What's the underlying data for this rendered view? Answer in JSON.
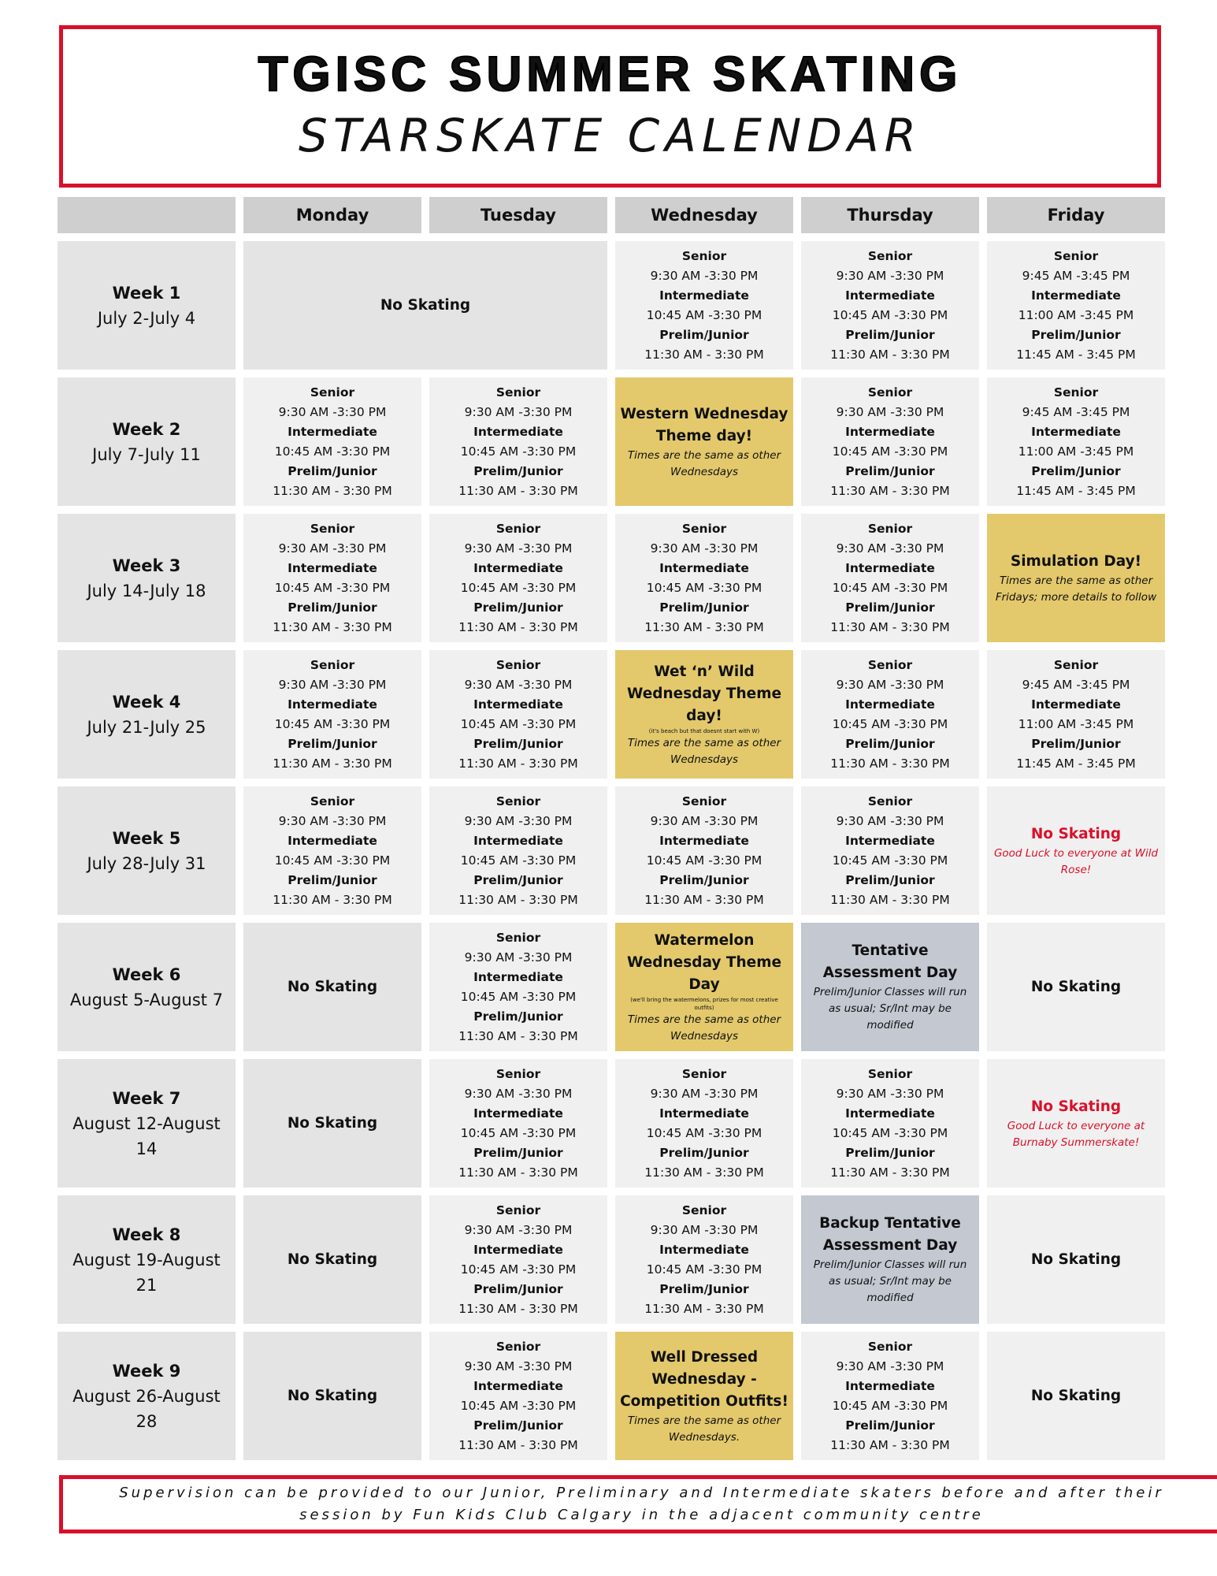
{
  "header": {
    "title": "TGISC SUMMER SKATING",
    "subtitle": "STARSKATE CALENDAR"
  },
  "table": {
    "columns": [
      "Monday",
      "Tuesday",
      "Wednesday",
      "Thursday",
      "Friday"
    ],
    "rows": [
      {
        "week": "Week 1",
        "dates": "July 2-July 4",
        "cells": [
          {
            "title": "No Skating",
            "span": 2,
            "fill": "#e4e4e4"
          },
          {
            "lines": [
              "Senior",
              "9:30 AM -3:30 PM",
              "Intermediate",
              "10:45 AM -3:30 PM",
              "Prelim/Junior",
              "11:30 AM - 3:30 PM"
            ]
          },
          {
            "lines": [
              "Senior",
              "9:30 AM -3:30 PM",
              "Intermediate",
              "10:45 AM -3:30 PM",
              "Prelim/Junior",
              "11:30 AM - 3:30 PM"
            ]
          },
          {
            "lines": [
              "Senior",
              "9:45 AM -3:45 PM",
              "Intermediate",
              "11:00 AM -3:45 PM",
              "Prelim/Junior",
              "11:45 AM - 3:45 PM"
            ]
          }
        ]
      },
      {
        "week": "Week 2",
        "dates": "July 7-July 11",
        "cells": [
          {
            "lines": [
              "Senior",
              "9:30 AM -3:30 PM",
              "Intermediate",
              "10:45 AM -3:30 PM",
              "Prelim/Junior",
              "11:30 AM - 3:30 PM"
            ]
          },
          {
            "lines": [
              "Senior",
              "9:30 AM -3:30 PM",
              "Intermediate",
              "10:45 AM -3:30 PM",
              "Prelim/Junior",
              "11:30 AM - 3:30 PM"
            ]
          },
          {
            "title": "Western Wednesday Theme day!",
            "detail": "Times are the same as other Wednesdays",
            "fill": "#e3c96c"
          },
          {
            "lines": [
              "Senior",
              "9:30 AM -3:30 PM",
              "Intermediate",
              "10:45 AM -3:30 PM",
              "Prelim/Junior",
              "11:30 AM - 3:30 PM"
            ]
          },
          {
            "lines": [
              "Senior",
              "9:45 AM -3:45 PM",
              "Intermediate",
              "11:00 AM -3:45 PM",
              "Prelim/Junior",
              "11:45 AM - 3:45 PM"
            ]
          }
        ]
      },
      {
        "week": "Week 3",
        "dates": "July 14-July 18",
        "cells": [
          {
            "lines": [
              "Senior",
              "9:30 AM -3:30 PM",
              "Intermediate",
              "10:45 AM -3:30 PM",
              "Prelim/Junior",
              "11:30 AM - 3:30 PM"
            ]
          },
          {
            "lines": [
              "Senior",
              "9:30 AM -3:30 PM",
              "Intermediate",
              "10:45 AM -3:30 PM",
              "Prelim/Junior",
              "11:30 AM - 3:30 PM"
            ]
          },
          {
            "lines": [
              "Senior",
              "9:30 AM -3:30 PM",
              "Intermediate",
              "10:45 AM -3:30 PM",
              "Prelim/Junior",
              "11:30 AM - 3:30 PM"
            ]
          },
          {
            "lines": [
              "Senior",
              "9:30 AM -3:30 PM",
              "Intermediate",
              "10:45 AM -3:30 PM",
              "Prelim/Junior",
              "11:30 AM - 3:30 PM"
            ]
          },
          {
            "title": "Simulation Day!",
            "detail": "Times are the same as other Fridays; more details to follow",
            "fill": "#e3c96c"
          }
        ]
      },
      {
        "week": "Week 4",
        "dates": "July 21-July 25",
        "cells": [
          {
            "lines": [
              "Senior",
              "9:30 AM -3:30 PM",
              "Intermediate",
              "10:45 AM -3:30 PM",
              "Prelim/Junior",
              "11:30 AM - 3:30 PM"
            ]
          },
          {
            "lines": [
              "Senior",
              "9:30 AM -3:30 PM",
              "Intermediate",
              "10:45 AM -3:30 PM",
              "Prelim/Junior",
              "11:30 AM - 3:30 PM"
            ]
          },
          {
            "title": "Wet ‘n’ Wild Wednesday Theme day!",
            "note": "(it's beach but that doesnt start with W)",
            "detail": "Times are the same as other Wednesdays",
            "fill": "#e3c96c"
          },
          {
            "lines": [
              "Senior",
              "9:30 AM -3:30 PM",
              "Intermediate",
              "10:45 AM -3:30 PM",
              "Prelim/Junior",
              "11:30 AM - 3:30 PM"
            ]
          },
          {
            "lines": [
              "Senior",
              "9:45 AM -3:45 PM",
              "Intermediate",
              "11:00 AM -3:45 PM",
              "Prelim/Junior",
              "11:45 AM - 3:45 PM"
            ]
          }
        ]
      },
      {
        "week": "Week 5",
        "dates": "July 28-July 31",
        "cells": [
          {
            "lines": [
              "Senior",
              "9:30 AM -3:30 PM",
              "Intermediate",
              "10:45 AM -3:30 PM",
              "Prelim/Junior",
              "11:30 AM - 3:30 PM"
            ]
          },
          {
            "lines": [
              "Senior",
              "9:30 AM -3:30 PM",
              "Intermediate",
              "10:45 AM -3:30 PM",
              "Prelim/Junior",
              "11:30 AM - 3:30 PM"
            ]
          },
          {
            "lines": [
              "Senior",
              "9:30 AM -3:30 PM",
              "Intermediate",
              "10:45 AM -3:30 PM",
              "Prelim/Junior",
              "11:30 AM - 3:30 PM"
            ]
          },
          {
            "lines": [
              "Senior",
              "9:30 AM -3:30 PM",
              "Intermediate",
              "10:45 AM -3:30 PM",
              "Prelim/Junior",
              "11:30 AM - 3:30 PM"
            ]
          },
          {
            "title": "No Skating",
            "detail": "Good Luck to everyone at Wild Rose!",
            "ink": "#d9102a"
          }
        ]
      },
      {
        "week": "Week 6",
        "dates": "August 5-August 7",
        "cells": [
          {
            "title": "No Skating",
            "fill": "#e4e4e4"
          },
          {
            "lines": [
              "Senior",
              "9:30 AM -3:30 PM",
              "Intermediate",
              "10:45 AM -3:30 PM",
              "Prelim/Junior",
              "11:30 AM - 3:30 PM"
            ]
          },
          {
            "title": "Watermelon Wednesday Theme Day",
            "note": "(we'll bring the watermelons, prizes for most creative outfits)",
            "detail": "Times are the same as other Wednesdays",
            "fill": "#e3c96c"
          },
          {
            "title": "Tentative Assessment Day",
            "detail": "Prelim/Junior Classes will run as usual; Sr/Int may be modified",
            "fill": "#c3c8d1"
          },
          {
            "title": "No Skating"
          }
        ]
      },
      {
        "week": "Week 7",
        "dates": "August 12-August 14",
        "cells": [
          {
            "title": "No Skating",
            "fill": "#e4e4e4"
          },
          {
            "lines": [
              "Senior",
              "9:30 AM -3:30 PM",
              "Intermediate",
              "10:45 AM -3:30 PM",
              "Prelim/Junior",
              "11:30 AM - 3:30 PM"
            ]
          },
          {
            "lines": [
              "Senior",
              "9:30 AM -3:30 PM",
              "Intermediate",
              "10:45 AM -3:30 PM",
              "Prelim/Junior",
              "11:30 AM - 3:30 PM"
            ]
          },
          {
            "lines": [
              "Senior",
              "9:30 AM -3:30 PM",
              "Intermediate",
              "10:45 AM -3:30 PM",
              "Prelim/Junior",
              "11:30 AM - 3:30 PM"
            ]
          },
          {
            "title": "No Skating",
            "detail": "Good Luck to everyone at Burnaby Summerskate!",
            "ink": "#d9102a"
          }
        ]
      },
      {
        "week": "Week 8",
        "dates": "August 19-August 21",
        "cells": [
          {
            "title": "No Skating",
            "fill": "#e4e4e4"
          },
          {
            "lines": [
              "Senior",
              "9:30 AM -3:30 PM",
              "Intermediate",
              "10:45 AM -3:30 PM",
              "Prelim/Junior",
              "11:30 AM - 3:30 PM"
            ]
          },
          {
            "lines": [
              "Senior",
              "9:30 AM -3:30 PM",
              "Intermediate",
              "10:45 AM -3:30 PM",
              "Prelim/Junior",
              "11:30 AM - 3:30 PM"
            ]
          },
          {
            "title": "Backup Tentative Assessment  Day",
            "detail": "Prelim/Junior Classes will run as usual; Sr/Int may be modified",
            "fill": "#c3c8d1"
          },
          {
            "title": "No Skating"
          }
        ]
      },
      {
        "week": "Week 9",
        "dates": "August 26-August 28",
        "cells": [
          {
            "title": "No Skating",
            "fill": "#e4e4e4"
          },
          {
            "lines": [
              "Senior",
              "9:30 AM -3:30 PM",
              "Intermediate",
              "10:45 AM -3:30 PM",
              "Prelim/Junior",
              "11:30 AM - 3:30 PM"
            ]
          },
          {
            "title": "Well Dressed Wednesday - Competition Outfits!",
            "detail": "Times are the same as other Wednesdays.",
            "fill": "#e3c96c"
          },
          {
            "lines": [
              "Senior",
              "9:30 AM -3:30 PM",
              "Intermediate",
              "10:45 AM -3:30 PM",
              "Prelim/Junior",
              "11:30 AM - 3:30 PM"
            ]
          },
          {
            "title": "No Skating"
          }
        ]
      }
    ]
  },
  "footer": {
    "text": "Supervision can be provided to our Junior, Preliminary and Intermediate skaters before and after their session by Fun Kids Club Calgary in the adjacent community centre"
  }
}
